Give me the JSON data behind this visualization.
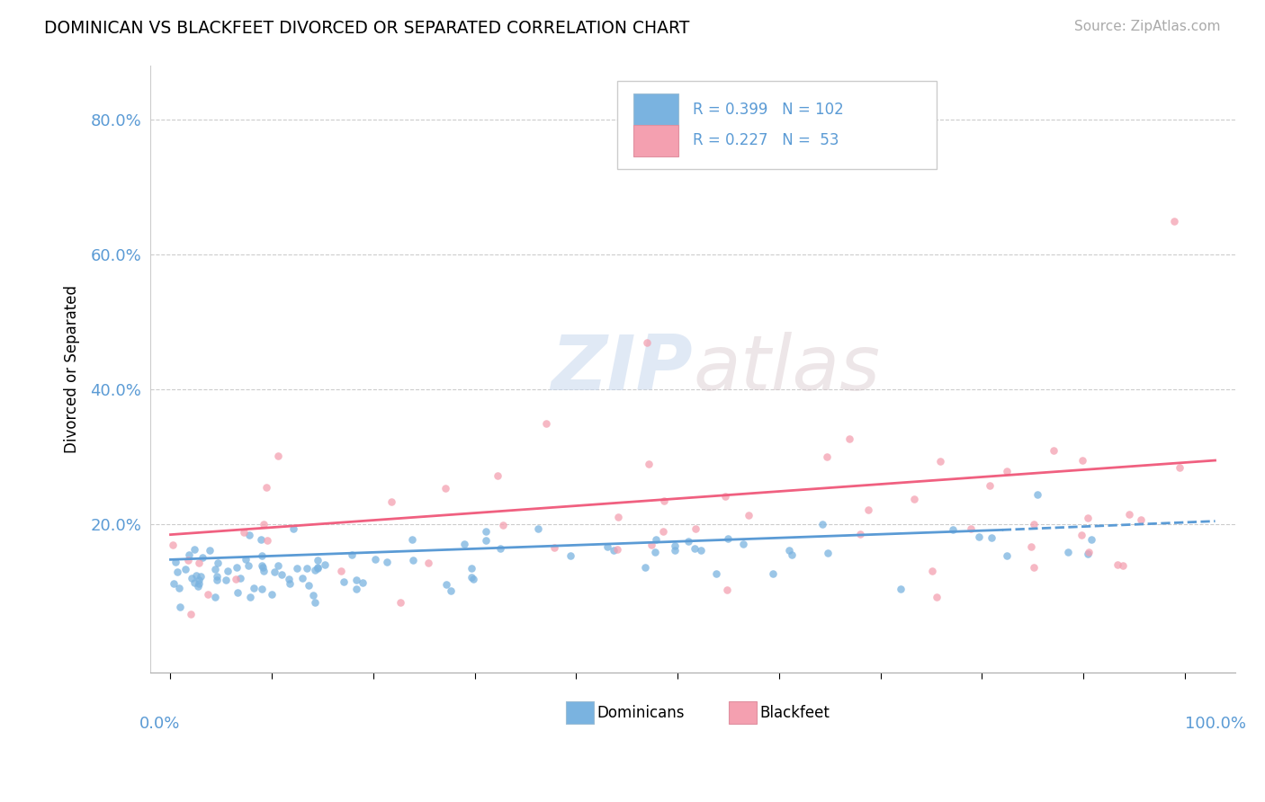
{
  "title": "DOMINICAN VS BLACKFEET DIVORCED OR SEPARATED CORRELATION CHART",
  "source": "Source: ZipAtlas.com",
  "ylabel": "Divorced or Separated",
  "legend_label1": "Dominicans",
  "legend_label2": "Blackfeet",
  "r1": 0.399,
  "n1": 102,
  "r2": 0.227,
  "n2": 53,
  "color1": "#7ab3e0",
  "color2": "#f4a0b0",
  "trendline1_color": "#5b9bd5",
  "trendline2_color": "#f06080",
  "watermark_zip": "ZIP",
  "watermark_atlas": "atlas",
  "ytick_vals": [
    0.0,
    0.2,
    0.4,
    0.6,
    0.8
  ],
  "ytick_labels": [
    "",
    "20.0%",
    "40.0%",
    "60.0%",
    "80.0%"
  ],
  "ylim": [
    -0.02,
    0.88
  ],
  "xlim": [
    -0.02,
    1.05
  ]
}
